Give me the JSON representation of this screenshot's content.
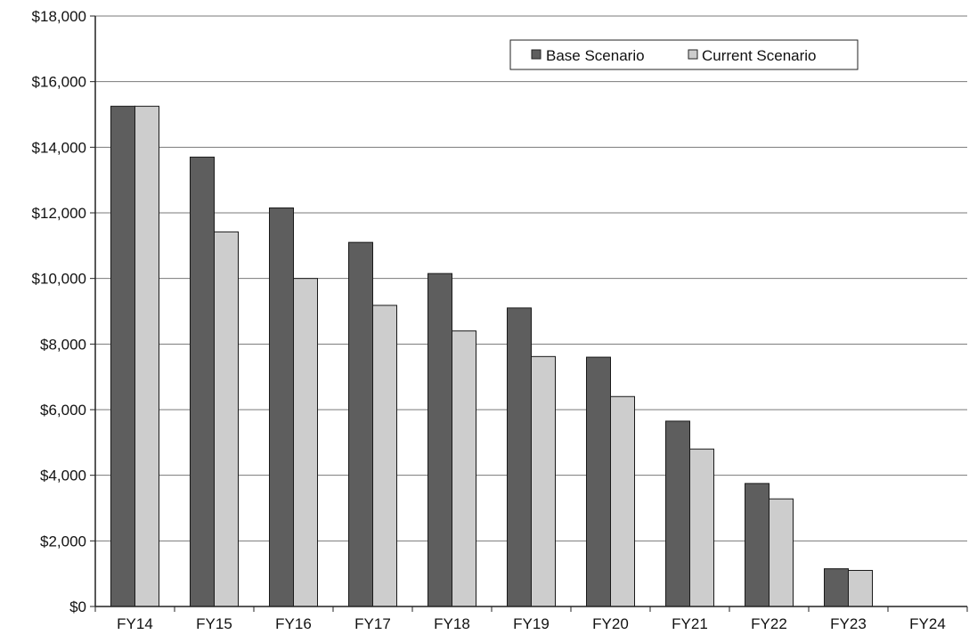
{
  "chart_data": {
    "type": "bar",
    "title": "",
    "xlabel": "",
    "ylabel": "",
    "categories": [
      "FY14",
      "FY15",
      "FY16",
      "FY17",
      "FY18",
      "FY19",
      "FY20",
      "FY21",
      "FY22",
      "FY23",
      "FY24"
    ],
    "series": [
      {
        "name": "Base Scenario",
        "color": "#5e5e5e",
        "values": [
          15250,
          13700,
          12150,
          11100,
          10150,
          9100,
          7600,
          5650,
          3750,
          1150,
          0
        ]
      },
      {
        "name": "Current Scenario",
        "color": "#cdcdcd",
        "values": [
          15250,
          11420,
          10000,
          9180,
          8400,
          7620,
          6400,
          4800,
          3280,
          1100,
          0
        ]
      }
    ],
    "ylim": [
      0,
      18000
    ],
    "ytick_values": [
      0,
      2000,
      4000,
      6000,
      8000,
      10000,
      12000,
      14000,
      16000,
      18000
    ],
    "ytick_labels": [
      "$0",
      "$2,000",
      "$4,000",
      "$6,000",
      "$8,000",
      "$10,000",
      "$12,000",
      "$14,000",
      "$16,000",
      "$18,000"
    ],
    "grid": true,
    "legend_position": "top-right"
  }
}
